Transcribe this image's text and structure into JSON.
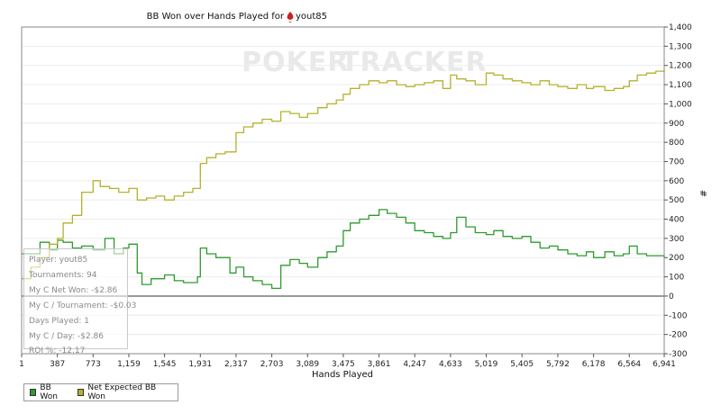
{
  "chart_data": {
    "type": "line",
    "title": "BB Won over Hands Played for",
    "player_name": "yout85",
    "xlabel": "Hands Played",
    "ylabel": "#",
    "watermark_left": "POKER",
    "watermark_right": "TRACKER",
    "xlim": [
      1,
      6941
    ],
    "ylim": [
      -300,
      1400
    ],
    "x_ticks": [
      1,
      387,
      773,
      1159,
      1545,
      1931,
      2317,
      2703,
      3089,
      3475,
      3861,
      4247,
      4633,
      5019,
      5405,
      5792,
      6178,
      6564,
      6941
    ],
    "x_tick_labels": [
      "1",
      "387",
      "773",
      "1,159",
      "1,545",
      "1,931",
      "2,317",
      "2,703",
      "3,089",
      "3,475",
      "3,861",
      "4,247",
      "4,633",
      "5,019",
      "5,405",
      "5,792",
      "6,178",
      "6,564",
      "6,941"
    ],
    "y_ticks": [
      -300,
      -200,
      -100,
      0,
      100,
      200,
      300,
      400,
      500,
      600,
      700,
      800,
      900,
      1000,
      1100,
      1200,
      1300,
      1400
    ],
    "y_tick_labels": [
      "-300",
      "-200",
      "-100",
      "0",
      "100",
      "200",
      "300",
      "400",
      "500",
      "600",
      "700",
      "800",
      "900",
      "1,000",
      "1,100",
      "1,200",
      "1,300",
      "1,400"
    ],
    "grid": "horizontal",
    "legend_placement": "bottom-left",
    "series": [
      {
        "name": "BB Won",
        "color": "#2e9a2e",
        "x": [
          1,
          200,
          300,
          387,
          450,
          550,
          650,
          773,
          900,
          1000,
          1100,
          1159,
          1250,
          1300,
          1400,
          1545,
          1650,
          1750,
          1900,
          1931,
          2000,
          2100,
          2250,
          2317,
          2400,
          2500,
          2600,
          2703,
          2800,
          2900,
          3000,
          3089,
          3200,
          3300,
          3400,
          3475,
          3550,
          3650,
          3750,
          3861,
          3950,
          4050,
          4150,
          4247,
          4350,
          4450,
          4550,
          4633,
          4700,
          4800,
          4900,
          5019,
          5100,
          5200,
          5300,
          5405,
          5500,
          5600,
          5700,
          5792,
          5900,
          6000,
          6100,
          6178,
          6300,
          6400,
          6500,
          6564,
          6650,
          6750,
          6850,
          6941
        ],
        "y": [
          220,
          280,
          240,
          290,
          280,
          250,
          260,
          240,
          300,
          220,
          250,
          270,
          120,
          60,
          90,
          110,
          80,
          70,
          100,
          250,
          220,
          200,
          120,
          150,
          100,
          80,
          60,
          40,
          160,
          190,
          170,
          150,
          200,
          230,
          260,
          340,
          380,
          400,
          420,
          450,
          430,
          410,
          380,
          340,
          330,
          310,
          300,
          330,
          410,
          360,
          330,
          320,
          340,
          310,
          300,
          310,
          280,
          250,
          260,
          240,
          220,
          210,
          230,
          200,
          230,
          210,
          220,
          260,
          220,
          210,
          210,
          200
        ]
      },
      {
        "name": "Net Expected BB Won",
        "color": "#b5b12c",
        "x": [
          1,
          100,
          200,
          300,
          387,
          450,
          550,
          650,
          773,
          850,
          950,
          1050,
          1159,
          1250,
          1350,
          1450,
          1545,
          1650,
          1750,
          1850,
          1931,
          2000,
          2100,
          2200,
          2317,
          2400,
          2500,
          2600,
          2703,
          2800,
          2900,
          3000,
          3089,
          3200,
          3300,
          3400,
          3475,
          3550,
          3650,
          3750,
          3861,
          3950,
          4050,
          4150,
          4247,
          4350,
          4450,
          4550,
          4633,
          4700,
          4800,
          4900,
          5019,
          5100,
          5200,
          5300,
          5405,
          5500,
          5600,
          5700,
          5792,
          5900,
          6000,
          6100,
          6178,
          6300,
          6400,
          6500,
          6564,
          6650,
          6750,
          6850,
          6941
        ],
        "y": [
          90,
          150,
          200,
          270,
          300,
          380,
          420,
          540,
          600,
          570,
          560,
          540,
          560,
          500,
          510,
          520,
          500,
          520,
          540,
          560,
          690,
          720,
          740,
          750,
          850,
          880,
          900,
          920,
          910,
          960,
          950,
          930,
          950,
          980,
          1000,
          1020,
          1050,
          1080,
          1100,
          1120,
          1110,
          1120,
          1100,
          1090,
          1100,
          1110,
          1120,
          1080,
          1150,
          1130,
          1120,
          1100,
          1160,
          1150,
          1130,
          1120,
          1110,
          1100,
          1120,
          1100,
          1090,
          1080,
          1100,
          1080,
          1090,
          1070,
          1080,
          1090,
          1120,
          1150,
          1160,
          1170,
          1180
        ]
      }
    ]
  },
  "stats": {
    "player": "Player: yout85",
    "tournaments": "Tournaments: 94",
    "net_won": "My C Net Won: -$2.86",
    "per_tournament": "My C / Tournament: -$0.03",
    "days_played": "Days Played: 1",
    "per_day": "My C / Day: -$2.86",
    "roi": "ROI %: -12.17"
  }
}
